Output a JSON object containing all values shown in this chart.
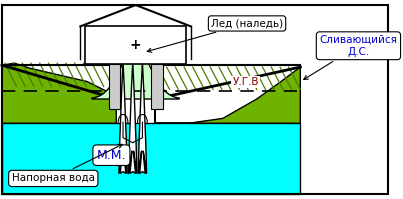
{
  "bg_color": "#ffffff",
  "green_color": "#6db300",
  "ice_color": "#ccffcc",
  "cyan_color": "#00ffff",
  "arrow_color": "#ffffff",
  "pipe_color": "#cccccc",
  "house_fill": "#ffffff",
  "dash_color": "#000000",
  "border_color": "#000000",
  "label_led_text": "Лед (наледь)",
  "label_ds_text": "Сливающийся\nД.С.",
  "label_ugv_text": "У.Г.В",
  "label_mm_text": "М.М.",
  "label_napor_text": "Напорная вода",
  "color_ds": "#0000cc",
  "color_ugv": "#8b0000",
  "color_mm": "#0000cc",
  "color_napor": "#000000",
  "color_led": "#000000"
}
